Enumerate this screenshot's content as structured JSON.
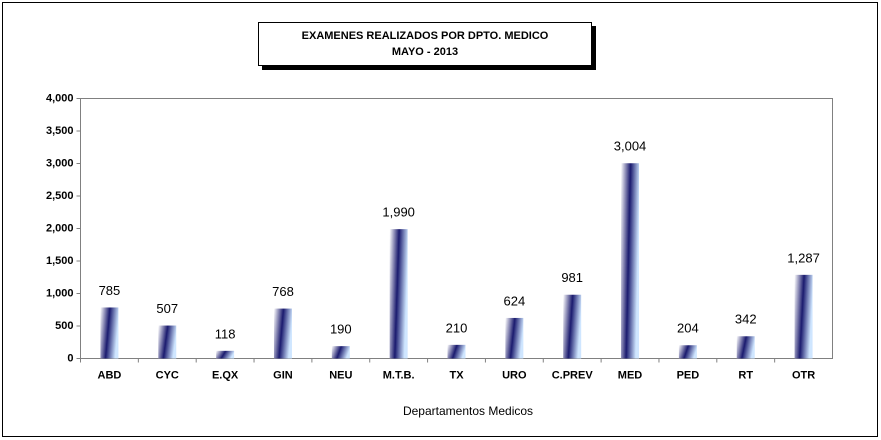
{
  "chart_data": {
    "type": "bar",
    "title": "EXAMENES REALIZADOS POR DPTO. MEDICO",
    "subtitle": "MAYO -  2013",
    "x_label": "Departamentos Medicos",
    "categories": [
      "ABD",
      "CYC",
      "E.QX",
      "GIN",
      "NEU",
      "M.T.B.",
      "TX",
      "URO",
      "C.PREV",
      "MED",
      "PED",
      "RT",
      "OTR"
    ],
    "values": [
      785,
      507,
      118,
      768,
      190,
      1990,
      210,
      624,
      981,
      3004,
      204,
      342,
      1287
    ],
    "value_labels": [
      "785",
      "507",
      "118",
      "768",
      "190",
      "1,990",
      "210",
      "624",
      "981",
      "3,004",
      "204",
      "342",
      "1,287"
    ],
    "color": "#1a1a6e",
    "ylim": [
      0,
      4000
    ],
    "yticks": [
      0,
      500,
      {
        "value": 1000,
        "label": "1,000"
      },
      {
        "value": 1500,
        "label": "1,500"
      },
      {
        "value": 2000,
        "label": "2,000"
      },
      {
        "value": 2500,
        "label": "2,500"
      },
      {
        "value": 3000,
        "label": "3,000"
      },
      {
        "value": 3500,
        "label": "3,500"
      },
      {
        "value": 4000,
        "label": "4,000"
      }
    ],
    "grid": false
  }
}
